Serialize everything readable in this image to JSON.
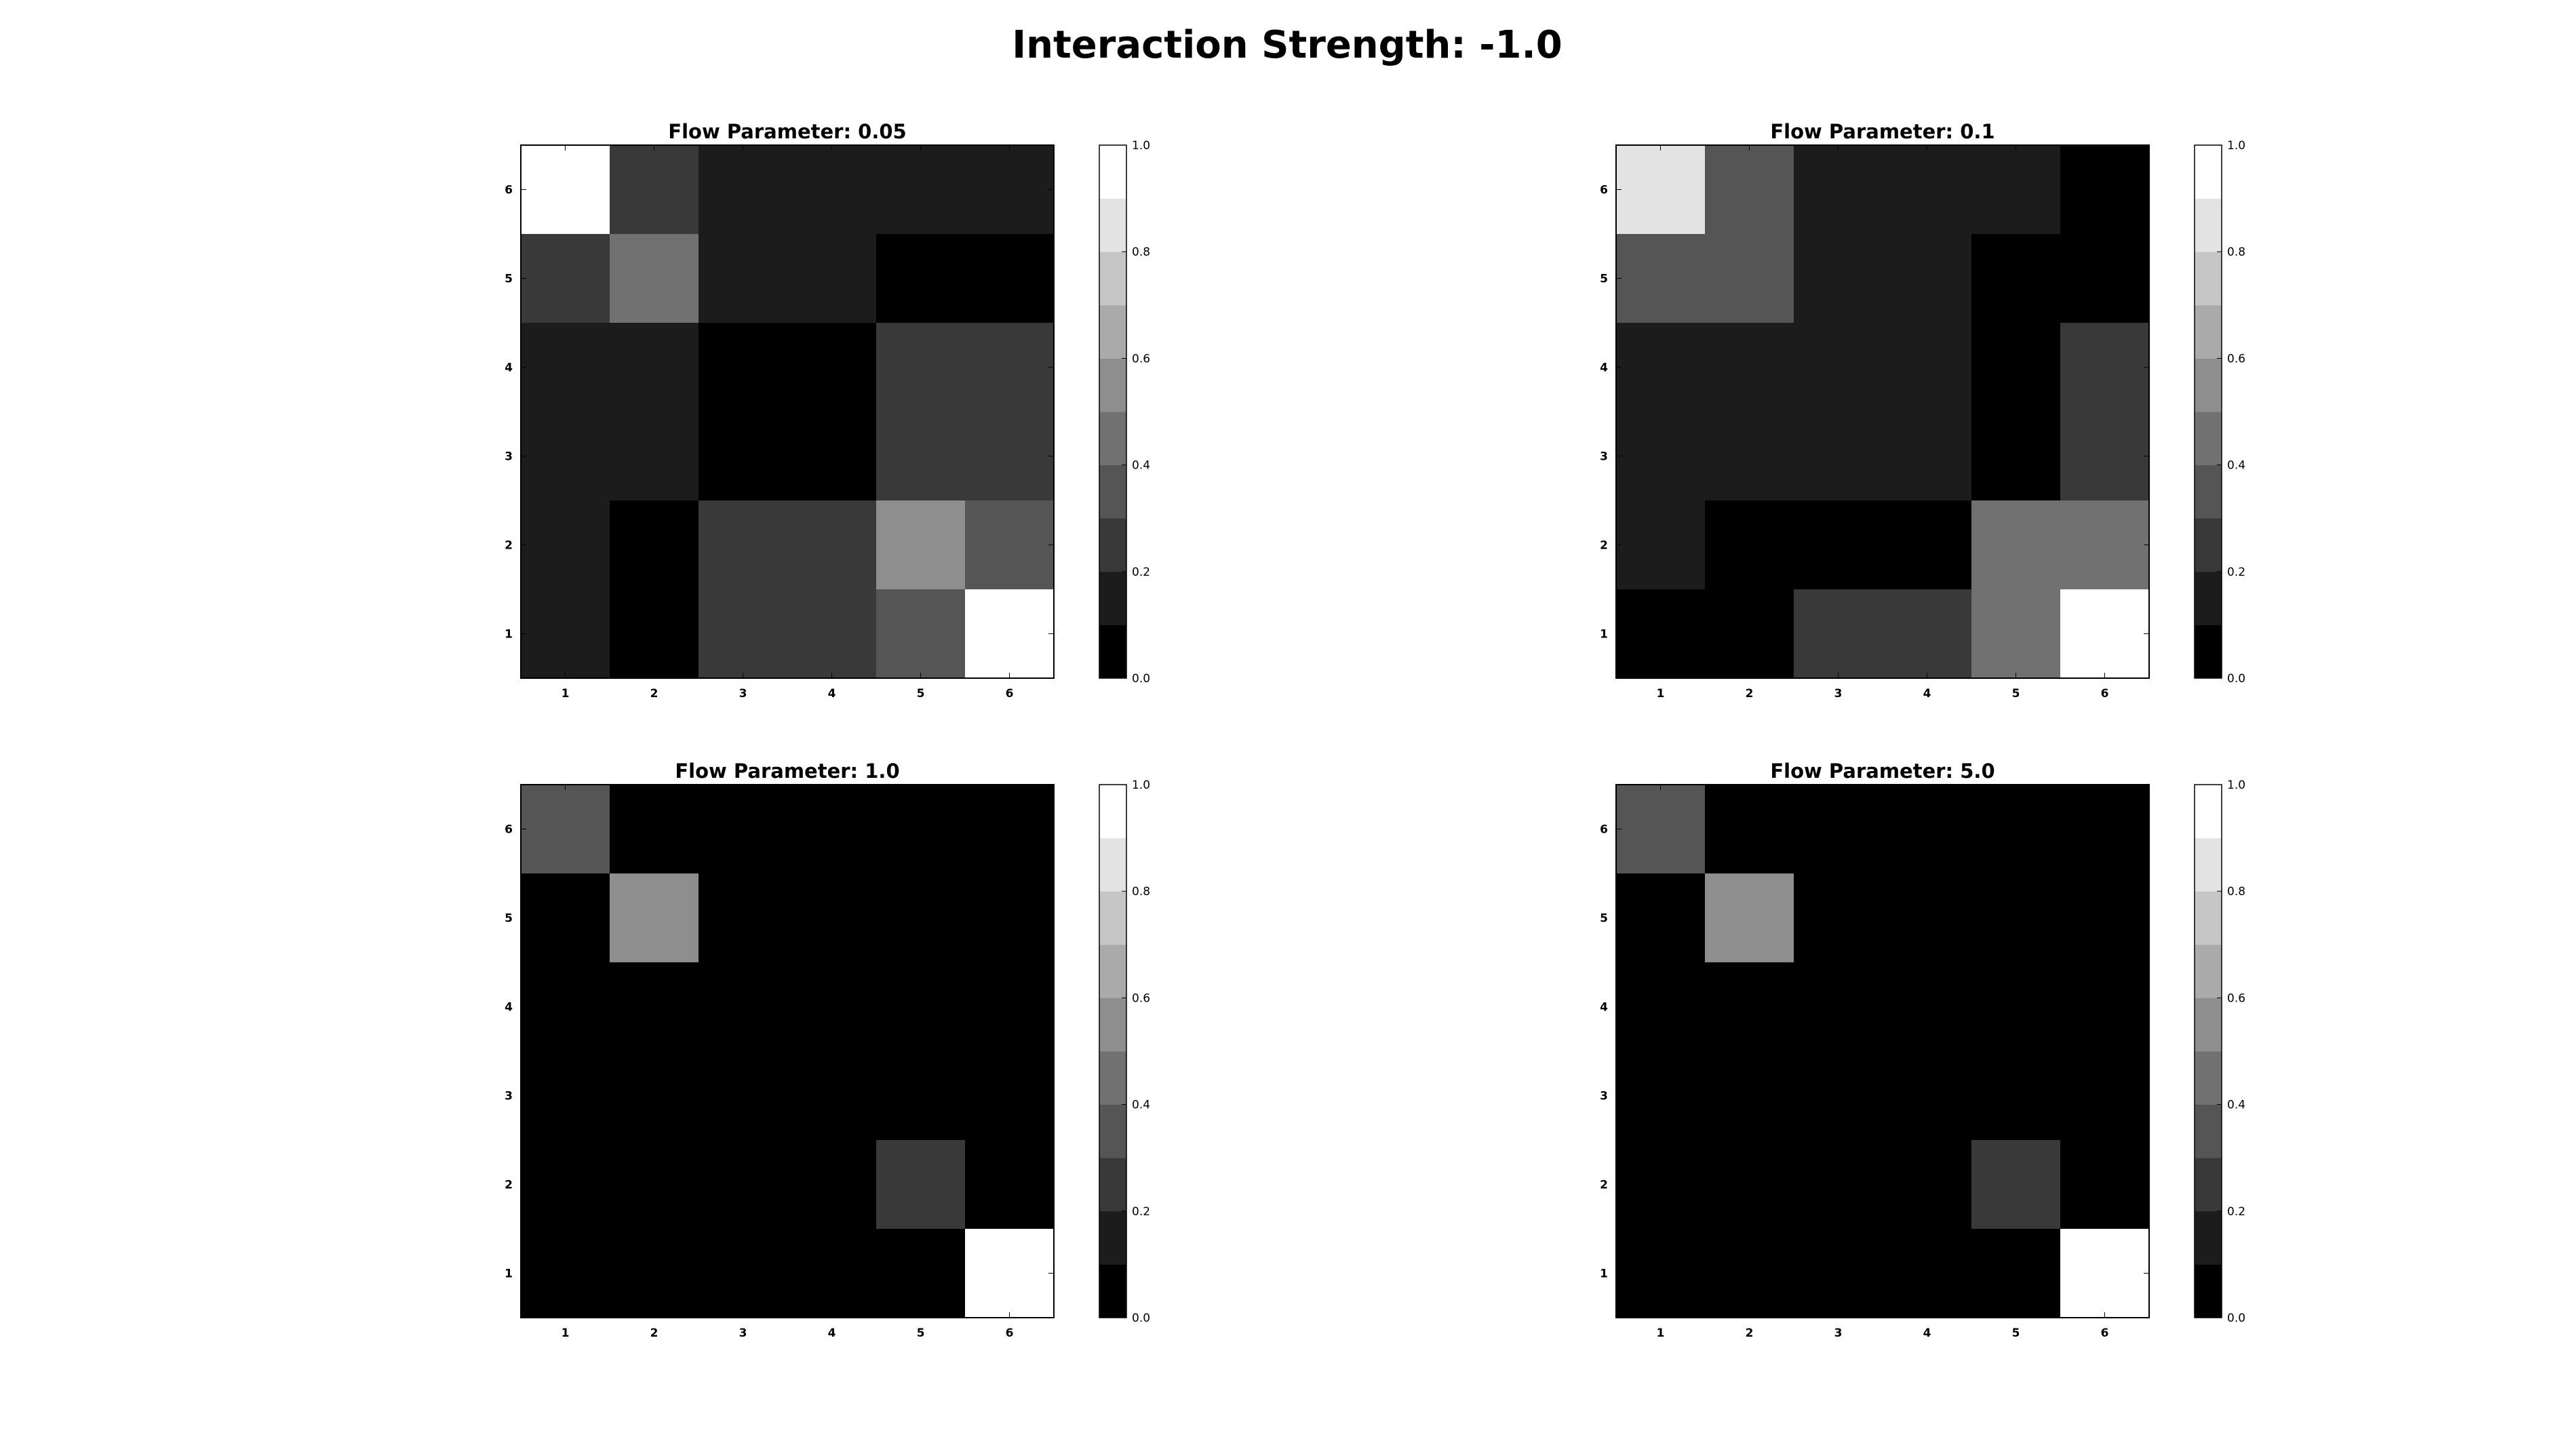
{
  "figure": {
    "title": "Interaction Strength: -1.0"
  },
  "chart_data": [
    {
      "type": "heatmap",
      "title": "Flow Parameter: 0.05",
      "x": [
        1,
        2,
        3,
        4,
        5,
        6
      ],
      "y": [
        1,
        2,
        3,
        4,
        5,
        6
      ],
      "matrix": [
        [
          0.1,
          0.0,
          0.2,
          0.2,
          0.3,
          1.0
        ],
        [
          0.1,
          0.0,
          0.2,
          0.2,
          0.5,
          0.3
        ],
        [
          0.1,
          0.1,
          0.0,
          0.0,
          0.2,
          0.2
        ],
        [
          0.1,
          0.1,
          0.0,
          0.0,
          0.2,
          0.2
        ],
        [
          0.2,
          0.4,
          0.1,
          0.1,
          0.0,
          0.0
        ],
        [
          1.0,
          0.2,
          0.1,
          0.1,
          0.1,
          0.1
        ]
      ],
      "colorbar": {
        "ticks": [
          "0.0",
          "0.2",
          "0.4",
          "0.6",
          "0.8",
          "1.0"
        ],
        "range": [
          0,
          1
        ],
        "levels": 10
      },
      "cmap": "gray"
    },
    {
      "type": "heatmap",
      "title": "Flow Parameter: 0.1",
      "x": [
        1,
        2,
        3,
        4,
        5,
        6
      ],
      "y": [
        1,
        2,
        3,
        4,
        5,
        6
      ],
      "matrix": [
        [
          0.0,
          0.0,
          0.2,
          0.2,
          0.4,
          1.0
        ],
        [
          0.1,
          0.0,
          0.0,
          0.0,
          0.4,
          0.4
        ],
        [
          0.1,
          0.1,
          0.1,
          0.1,
          0.0,
          0.2
        ],
        [
          0.1,
          0.1,
          0.1,
          0.1,
          0.0,
          0.2
        ],
        [
          0.3,
          0.3,
          0.1,
          0.1,
          0.0,
          0.0
        ],
        [
          0.8,
          0.3,
          0.1,
          0.1,
          0.1,
          0.0
        ]
      ],
      "colorbar": {
        "ticks": [
          "0.0",
          "0.2",
          "0.4",
          "0.6",
          "0.8",
          "1.0"
        ],
        "range": [
          0,
          1
        ],
        "levels": 10
      },
      "cmap": "gray"
    },
    {
      "type": "heatmap",
      "title": "Flow Parameter: 1.0",
      "x": [
        1,
        2,
        3,
        4,
        5,
        6
      ],
      "y": [
        1,
        2,
        3,
        4,
        5,
        6
      ],
      "matrix": [
        [
          0.0,
          0.0,
          0.0,
          0.0,
          0.0,
          1.0
        ],
        [
          0.0,
          0.0,
          0.0,
          0.0,
          0.2,
          0.0
        ],
        [
          0.0,
          0.0,
          0.0,
          0.0,
          0.0,
          0.0
        ],
        [
          0.0,
          0.0,
          0.0,
          0.0,
          0.0,
          0.0
        ],
        [
          0.0,
          0.5,
          0.0,
          0.0,
          0.0,
          0.0
        ],
        [
          0.3,
          0.0,
          0.0,
          0.0,
          0.0,
          0.0
        ]
      ],
      "colorbar": {
        "ticks": [
          "0.0",
          "0.2",
          "0.4",
          "0.6",
          "0.8",
          "1.0"
        ],
        "range": [
          0,
          1
        ],
        "levels": 10
      },
      "cmap": "gray"
    },
    {
      "type": "heatmap",
      "title": "Flow Parameter: 5.0",
      "x": [
        1,
        2,
        3,
        4,
        5,
        6
      ],
      "y": [
        1,
        2,
        3,
        4,
        5,
        6
      ],
      "matrix": [
        [
          0.0,
          0.0,
          0.0,
          0.0,
          0.0,
          1.0
        ],
        [
          0.0,
          0.0,
          0.0,
          0.0,
          0.2,
          0.0
        ],
        [
          0.0,
          0.0,
          0.0,
          0.0,
          0.0,
          0.0
        ],
        [
          0.0,
          0.0,
          0.0,
          0.0,
          0.0,
          0.0
        ],
        [
          0.0,
          0.5,
          0.0,
          0.0,
          0.0,
          0.0
        ],
        [
          0.3,
          0.0,
          0.0,
          0.0,
          0.0,
          0.0
        ]
      ],
      "colorbar": {
        "ticks": [
          "0.0",
          "0.2",
          "0.4",
          "0.6",
          "0.8",
          "1.0"
        ],
        "range": [
          0,
          1
        ],
        "levels": 10
      },
      "cmap": "gray"
    }
  ]
}
